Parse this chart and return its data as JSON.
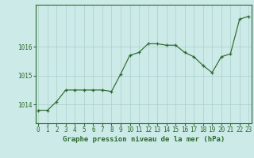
{
  "hours": [
    0,
    1,
    2,
    3,
    4,
    5,
    6,
    7,
    8,
    9,
    10,
    11,
    12,
    13,
    14,
    15,
    16,
    17,
    18,
    19,
    20,
    21,
    22,
    23
  ],
  "pressure": [
    1013.8,
    1013.8,
    1014.1,
    1014.5,
    1014.5,
    1014.5,
    1014.5,
    1014.5,
    1014.45,
    1015.05,
    1015.7,
    1015.8,
    1016.1,
    1016.1,
    1016.05,
    1016.05,
    1015.8,
    1015.65,
    1015.35,
    1015.1,
    1015.65,
    1015.75,
    1016.95,
    1017.05
  ],
  "line_color": "#2d6a2d",
  "marker": "+",
  "marker_size": 3,
  "marker_lw": 0.9,
  "line_width": 0.85,
  "bg_color": "#cceae8",
  "grid_color": "#aacfcc",
  "axis_color": "#2d6a2d",
  "tick_color": "#2d6a2d",
  "label_color": "#2d6a2d",
  "ylabel_ticks": [
    1014,
    1015,
    1016
  ],
  "ylim": [
    1013.35,
    1017.45
  ],
  "xlim": [
    -0.3,
    23.3
  ],
  "xlabel": "Graphe pression niveau de la mer (hPa)",
  "xlabel_fontsize": 6.5,
  "tick_fontsize": 5.5,
  "title": ""
}
